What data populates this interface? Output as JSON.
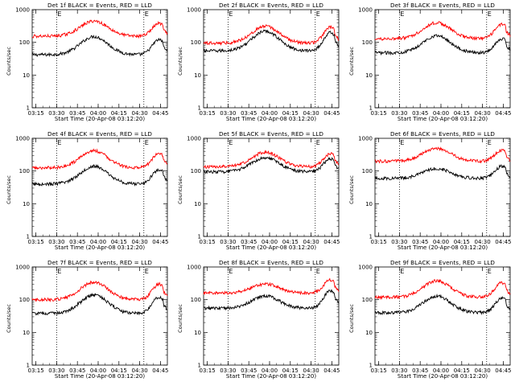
{
  "common": {
    "ylabel": "Counts/sec",
    "xlabel": "Start Time (20-Apr-08 03:12:20)",
    "xticks": [
      "03:15",
      "03:30",
      "03:45",
      "04:00",
      "04:15",
      "04:30",
      "04:45"
    ],
    "yticks": [
      "1",
      "10",
      "100",
      "1000"
    ],
    "flag_label": "E",
    "colors": {
      "events": "#000000",
      "lld": "#ff0000"
    }
  },
  "chart_data": [
    {
      "type": "line",
      "title": "Det 1f BLACK = Events, RED = LLD",
      "ylim": [
        1,
        1000
      ],
      "scale": "log",
      "x_range": [
        "03:12:20",
        "04:50"
      ],
      "vlines": [
        "03:30",
        "04:33"
      ],
      "series": [
        {
          "name": "Events",
          "base": 42,
          "peak": 150,
          "peak2": 120
        },
        {
          "name": "LLD",
          "base": 155,
          "peak": 450,
          "peak2": 380
        }
      ]
    },
    {
      "type": "line",
      "title": "Det 2f BLACK = Events, RED = LLD",
      "ylim": [
        1,
        1000
      ],
      "scale": "log",
      "x_range": [
        "03:12:20",
        "04:50"
      ],
      "vlines": [
        "03:30",
        "04:33"
      ],
      "series": [
        {
          "name": "Events",
          "base": 55,
          "peak": 220,
          "peak2": 200
        },
        {
          "name": "LLD",
          "base": 95,
          "peak": 310,
          "peak2": 290
        }
      ]
    },
    {
      "type": "line",
      "title": "Det 3f BLACK = Events, RED = LLD",
      "ylim": [
        1,
        1000
      ],
      "scale": "log",
      "x_range": [
        "03:12:20",
        "04:50"
      ],
      "vlines": [
        "03:30",
        "04:33"
      ],
      "series": [
        {
          "name": "Events",
          "base": 48,
          "peak": 160,
          "peak2": 130
        },
        {
          "name": "LLD",
          "base": 130,
          "peak": 400,
          "peak2": 360
        }
      ]
    },
    {
      "type": "line",
      "title": "Det 4f BLACK = Events, RED = LLD",
      "ylim": [
        1,
        1000
      ],
      "scale": "log",
      "x_range": [
        "03:12:20",
        "04:50"
      ],
      "vlines": [
        "03:30",
        "04:33"
      ],
      "series": [
        {
          "name": "Events",
          "base": 40,
          "peak": 140,
          "peak2": 110
        },
        {
          "name": "LLD",
          "base": 125,
          "peak": 420,
          "peak2": 350
        }
      ]
    },
    {
      "type": "line",
      "title": "Det 5f BLACK = Events, RED = LLD",
      "ylim": [
        1,
        1000
      ],
      "scale": "log",
      "x_range": [
        "03:12:20",
        "04:50"
      ],
      "vlines": [
        "03:30",
        "04:33"
      ],
      "series": [
        {
          "name": "Events",
          "base": 95,
          "peak": 260,
          "peak2": 240
        },
        {
          "name": "LLD",
          "base": 135,
          "peak": 380,
          "peak2": 340
        }
      ]
    },
    {
      "type": "line",
      "title": "Det 6f BLACK = Events, RED = LLD",
      "ylim": [
        1,
        1000
      ],
      "scale": "log",
      "x_range": [
        "03:12:20",
        "04:50"
      ],
      "vlines": [
        "03:30",
        "04:33"
      ],
      "series": [
        {
          "name": "Events",
          "base": 60,
          "peak": 120,
          "peak2": 140
        },
        {
          "name": "LLD",
          "base": 200,
          "peak": 500,
          "peak2": 430
        }
      ]
    },
    {
      "type": "line",
      "title": "Det 7f BLACK = Events, RED = LLD",
      "ylim": [
        1,
        1000
      ],
      "scale": "log",
      "x_range": [
        "03:12:20",
        "04:50"
      ],
      "vlines": [
        "03:30",
        "04:33"
      ],
      "series": [
        {
          "name": "Events",
          "base": 38,
          "peak": 140,
          "peak2": 120
        },
        {
          "name": "LLD",
          "base": 100,
          "peak": 350,
          "peak2": 300
        }
      ]
    },
    {
      "type": "line",
      "title": "Det 8f BLACK = Events, RED = LLD",
      "ylim": [
        1,
        1000
      ],
      "scale": "log",
      "x_range": [
        "03:12:20",
        "04:50"
      ],
      "vlines": [
        "03:30",
        "04:33"
      ],
      "series": [
        {
          "name": "Events",
          "base": 55,
          "peak": 130,
          "peak2": 190
        },
        {
          "name": "LLD",
          "base": 160,
          "peak": 300,
          "peak2": 400
        }
      ]
    },
    {
      "type": "line",
      "title": "Det 9f BLACK = Events, RED = LLD",
      "ylim": [
        1,
        1000
      ],
      "scale": "log",
      "x_range": [
        "03:12:20",
        "04:50"
      ],
      "vlines": [
        "03:30",
        "04:33"
      ],
      "series": [
        {
          "name": "Events",
          "base": 40,
          "peak": 130,
          "peak2": 110
        },
        {
          "name": "LLD",
          "base": 120,
          "peak": 380,
          "peak2": 330
        }
      ]
    }
  ]
}
